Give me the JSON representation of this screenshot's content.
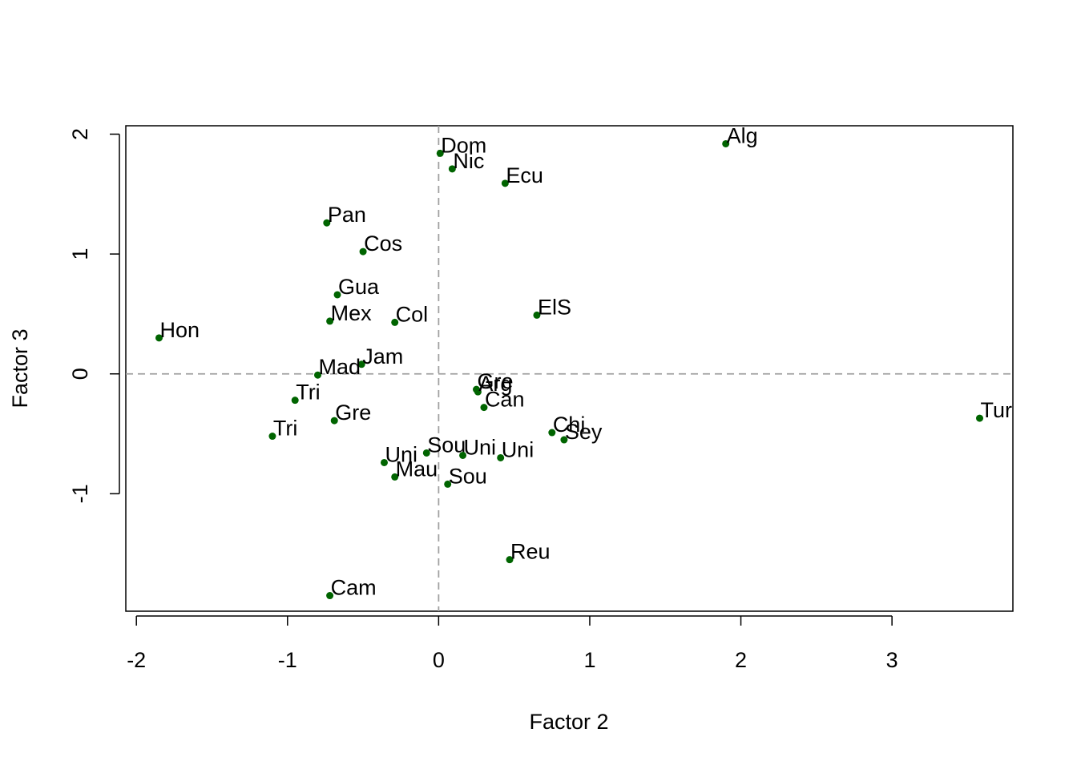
{
  "chart_data": {
    "type": "scatter",
    "title": "",
    "xlabel": "Factor 2",
    "ylabel": "Factor 3",
    "xlim": [
      -2.07,
      3.8
    ],
    "ylim": [
      -1.98,
      2.07
    ],
    "x_ticks": [
      -2,
      -1,
      0,
      1,
      2,
      3
    ],
    "y_ticks": [
      -1,
      0,
      1,
      2
    ],
    "x_tick_labels": [
      "-2",
      "-1",
      "0",
      "1",
      "2",
      "3"
    ],
    "y_tick_labels": [
      "-1",
      "0",
      "1",
      "2"
    ],
    "reference_lines": {
      "x": 0,
      "y": 0,
      "style": "dashed",
      "color": "#a0a0a0"
    },
    "grid": false,
    "point_color": "#006400",
    "points": [
      {
        "label": "Dom",
        "x": 0.01,
        "y": 1.84
      },
      {
        "label": "Nic",
        "x": 0.09,
        "y": 1.71
      },
      {
        "label": "Ecu",
        "x": 0.44,
        "y": 1.59
      },
      {
        "label": "Alg",
        "x": 1.9,
        "y": 1.92
      },
      {
        "label": "Pan",
        "x": -0.74,
        "y": 1.26
      },
      {
        "label": "Cos",
        "x": -0.5,
        "y": 1.02
      },
      {
        "label": "Gua",
        "x": -0.67,
        "y": 0.66
      },
      {
        "label": "Mex",
        "x": -0.72,
        "y": 0.44
      },
      {
        "label": "Col",
        "x": -0.29,
        "y": 0.43
      },
      {
        "label": "ElS",
        "x": 0.65,
        "y": 0.49
      },
      {
        "label": "Hon",
        "x": -1.85,
        "y": 0.3
      },
      {
        "label": "Jam",
        "x": -0.51,
        "y": 0.08
      },
      {
        "label": "Mad",
        "x": -0.8,
        "y": -0.01
      },
      {
        "label": "Tri",
        "x": -0.95,
        "y": -0.22
      },
      {
        "label": "Gre",
        "x": -0.69,
        "y": -0.39
      },
      {
        "label": "Tri",
        "x": -1.1,
        "y": -0.52
      },
      {
        "label": "Gre",
        "x": 0.25,
        "y": -0.13
      },
      {
        "label": "Arg",
        "x": 0.26,
        "y": -0.15
      },
      {
        "label": "Can",
        "x": 0.3,
        "y": -0.28
      },
      {
        "label": "Chi",
        "x": 0.75,
        "y": -0.49
      },
      {
        "label": "Sey",
        "x": 0.83,
        "y": -0.55
      },
      {
        "label": "Tur",
        "x": 3.58,
        "y": -0.37
      },
      {
        "label": "Sou",
        "x": -0.08,
        "y": -0.66
      },
      {
        "label": "Uni",
        "x": 0.16,
        "y": -0.68
      },
      {
        "label": "Uni",
        "x": 0.41,
        "y": -0.7
      },
      {
        "label": "Uni",
        "x": -0.36,
        "y": -0.74
      },
      {
        "label": "Mau",
        "x": -0.29,
        "y": -0.86
      },
      {
        "label": "Sou",
        "x": 0.06,
        "y": -0.92
      },
      {
        "label": "Reu",
        "x": 0.47,
        "y": -1.55
      },
      {
        "label": "Cam",
        "x": -0.72,
        "y": -1.85
      }
    ]
  }
}
